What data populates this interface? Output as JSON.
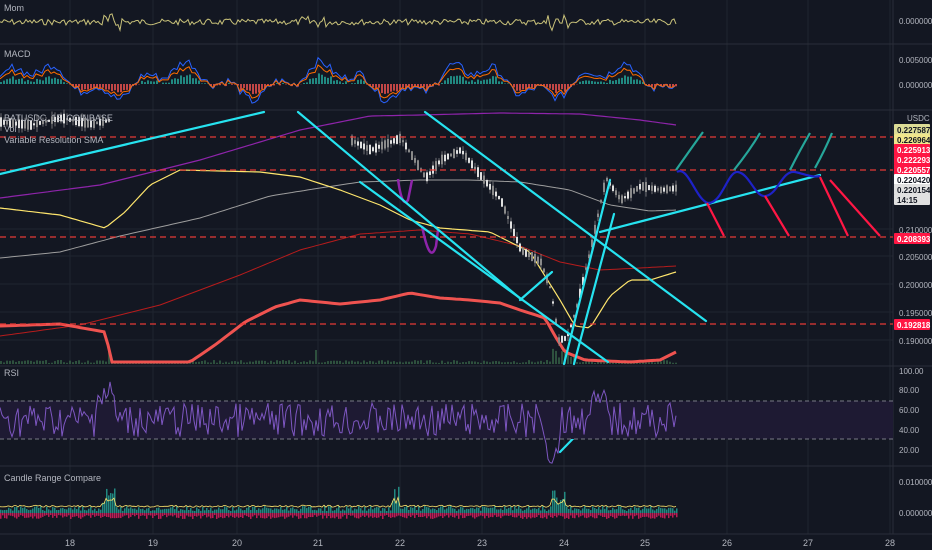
{
  "panels": {
    "mom": {
      "label": "Mom",
      "axis": [
        "0.000000"
      ]
    },
    "macd": {
      "label": "MACD",
      "axis": [
        "0.005000",
        "0.000000"
      ]
    },
    "main": {
      "labels": [
        "BATUSDC, 15, COINBASE",
        "Vol",
        "Variable Resolution SMA"
      ],
      "axis_title": "USDC",
      "axis": [
        "0.210000",
        "0.205000",
        "0.200000",
        "0.195000",
        "0.190000"
      ],
      "badges": [
        {
          "text": "0.227587",
          "bg": "#dcdc96",
          "fg": "#131722"
        },
        {
          "text": "0.226964",
          "bg": "#f0e68c",
          "fg": "#131722"
        },
        {
          "text": "0.225913",
          "bg": "#ff1744",
          "fg": "#ffffff"
        },
        {
          "text": "0.222293",
          "bg": "#ff1744",
          "fg": "#ffffff"
        },
        {
          "text": "0.220557",
          "bg": "#ff1744",
          "fg": "#ffffff"
        },
        {
          "text": "0.220420",
          "bg": "#ffffff",
          "fg": "#131722"
        },
        {
          "text": "0.220154",
          "bg": "#e0e0e0",
          "fg": "#131722"
        },
        {
          "text": "14:15",
          "bg": "#e0e0e0",
          "fg": "#131722"
        },
        {
          "text": "0.208393",
          "bg": "#ff1744",
          "fg": "#ffffff"
        },
        {
          "text": "0.192818",
          "bg": "#ff1744",
          "fg": "#ffffff"
        }
      ]
    },
    "rsi": {
      "label": "RSI",
      "axis": [
        "100.00",
        "80.00",
        "60.00",
        "40.00",
        "20.00"
      ]
    },
    "crc": {
      "label": "Candle Range Compare",
      "axis": [
        "0.010000",
        "0.000000"
      ]
    }
  },
  "time_axis": [
    "18",
    "19",
    "20",
    "21",
    "22",
    "23",
    "24",
    "25",
    "26",
    "27",
    "28"
  ],
  "colors": {
    "background": "#131722",
    "grid": "#1f2430",
    "trendline": "#26e3f0",
    "dashed_level": "#e53935",
    "projection_green": "#26a69a",
    "projection_red": "#ff1744",
    "projection_blue": "#1e22c8",
    "rsi_line": "#7e57c2",
    "rsi_band": "#1e1a33",
    "ma_yellow": "#ffe66d",
    "ma_purple": "#8e24aa",
    "ma_white": "#9e9e9e",
    "ma_red_thick": "#ef5350",
    "mom_line": "#c9c27a",
    "candle_up": "#e0e0e0",
    "candle_down": "#b0b0b0"
  },
  "chart_data": [
    {
      "type": "line",
      "name": "Mom",
      "x_range": [
        "17.3",
        "28"
      ],
      "y": {
        "ticks": [
          "0.000000"
        ]
      }
    },
    {
      "type": "bar",
      "name": "MACD",
      "y": {
        "ticks": [
          "0.005000",
          "0.000000"
        ]
      }
    },
    {
      "type": "candlestick",
      "name": "BATUSDC, 15, COINBASE",
      "ylabel": "USDC",
      "y_ticks": [
        0.21,
        0.205,
        0.2,
        0.195,
        0.19
      ],
      "levels": [
        0.227587,
        0.225913,
        0.220557,
        0.208393,
        0.192818
      ],
      "last_price": 0.220154,
      "x_ticks": [
        "18",
        "19",
        "20",
        "21",
        "22",
        "23",
        "24",
        "25",
        "26",
        "27",
        "28"
      ]
    },
    {
      "type": "line",
      "name": "RSI",
      "ylim": [
        20,
        100
      ],
      "y_ticks": [
        100,
        80,
        60,
        40,
        20
      ],
      "band": [
        30,
        70
      ]
    },
    {
      "type": "line",
      "name": "Candle Range Compare",
      "y_ticks": [
        0.01,
        0.0
      ]
    }
  ]
}
